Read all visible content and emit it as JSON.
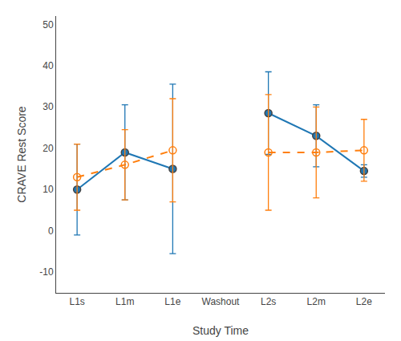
{
  "chart_data": {
    "type": "line",
    "xlabel": "Study Time",
    "ylabel": "CRAVE Rest Score",
    "categories": [
      "L1s",
      "L1m",
      "L1e",
      "Washout",
      "L2s",
      "L2m",
      "L2e"
    ],
    "series": [
      {
        "values": [
          10.0,
          19.0,
          15.0,
          null,
          28.5,
          23.0,
          14.5
        ],
        "errors": [
          11.0,
          11.5,
          20.5,
          null,
          10.0,
          7.5,
          1.5
        ],
        "line_style": "solid",
        "marker": "circle"
      },
      {
        "values": [
          13.0,
          16.0,
          19.5,
          null,
          19.0,
          19.0,
          19.5
        ],
        "errors": [
          8.0,
          8.5,
          12.5,
          null,
          14.0,
          11.0,
          7.5
        ],
        "line_style": "dashed",
        "marker": "open circle"
      }
    ],
    "ylim": [
      -15,
      52
    ],
    "yticks": [
      -10,
      0,
      10,
      20,
      30,
      40,
      50
    ],
    "grid": false
  }
}
